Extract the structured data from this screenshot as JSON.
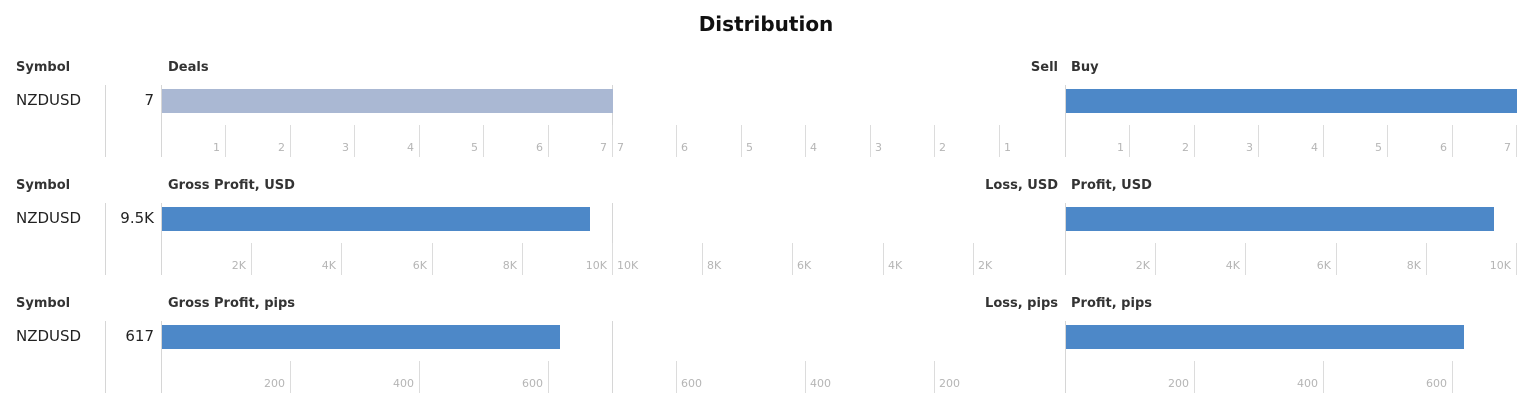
{
  "title": "Distribution",
  "colors": {
    "sell_bar": "#aab8d3",
    "buy_bar": "#4d88c8",
    "profit_bar": "#4d88c8",
    "loss_bar": "#4d88c8"
  },
  "chart_data": [
    {
      "type": "bar",
      "symbol_header": "Symbol",
      "symbol": "NZDUSD",
      "left_header": "Deals",
      "left_value_label": "7",
      "mid_header": "Sell",
      "right_header": "Buy",
      "left_value": 7,
      "mid_value": 0,
      "right_value": 7,
      "left_ticks": [
        "1",
        "2",
        "3",
        "4",
        "5",
        "6",
        "7"
      ],
      "left_tick_values": [
        1,
        2,
        3,
        4,
        5,
        6,
        7
      ],
      "mid_ticks": [
        "7",
        "6",
        "5",
        "4",
        "3",
        "2",
        "1"
      ],
      "mid_tick_values": [
        7,
        6,
        5,
        4,
        3,
        2,
        1
      ],
      "right_ticks": [
        "1",
        "2",
        "3",
        "4",
        "5",
        "6",
        "7"
      ],
      "right_tick_values": [
        1,
        2,
        3,
        4,
        5,
        6,
        7
      ],
      "axis_max": 7,
      "left_color_key": "sell_bar",
      "right_color_key": "buy_bar"
    },
    {
      "type": "bar",
      "symbol_header": "Symbol",
      "symbol": "NZDUSD",
      "left_header": "Gross Profit, USD",
      "left_value_label": "9.5K",
      "mid_header": "Loss, USD",
      "right_header": "Profit, USD",
      "left_value": 9500,
      "mid_value": 0,
      "right_value": 9500,
      "left_ticks": [
        "2K",
        "4K",
        "6K",
        "8K",
        "10K"
      ],
      "left_tick_values": [
        2000,
        4000,
        6000,
        8000,
        10000
      ],
      "mid_ticks": [
        "10K",
        "8K",
        "6K",
        "4K",
        "2K"
      ],
      "mid_tick_values": [
        10000,
        8000,
        6000,
        4000,
        2000
      ],
      "right_ticks": [
        "2K",
        "4K",
        "6K",
        "8K",
        "10K"
      ],
      "right_tick_values": [
        2000,
        4000,
        6000,
        8000,
        10000
      ],
      "axis_max": 10000,
      "left_color_key": "profit_bar",
      "right_color_key": "profit_bar"
    },
    {
      "type": "bar",
      "symbol_header": "Symbol",
      "symbol": "NZDUSD",
      "left_header": "Gross Profit, pips",
      "left_value_label": "617",
      "mid_header": "Loss, pips",
      "right_header": "Profit, pips",
      "left_value": 617,
      "mid_value": 0,
      "right_value": 617,
      "left_ticks": [
        "200",
        "400",
        "600"
      ],
      "left_tick_values": [
        200,
        400,
        600
      ],
      "mid_ticks": [
        "600",
        "400",
        "200"
      ],
      "mid_tick_values": [
        600,
        400,
        200
      ],
      "right_ticks": [
        "200",
        "400",
        "600"
      ],
      "right_tick_values": [
        200,
        400,
        600
      ],
      "axis_max": 700,
      "left_color_key": "profit_bar",
      "right_color_key": "profit_bar"
    }
  ]
}
